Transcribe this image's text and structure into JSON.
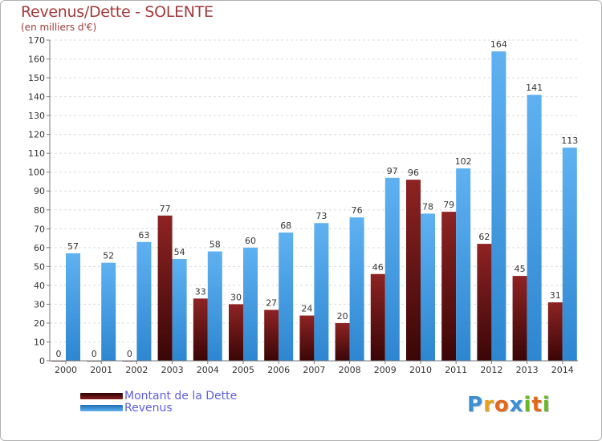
{
  "title": "Revenus/Dette - SOLENTE",
  "subtitle": "(en milliers d'€)",
  "colors": {
    "dette": "#7a1515",
    "revenus": "#3b96de",
    "title": "#a33a3a",
    "legend_text": "#5e5ee0"
  },
  "legend": {
    "dette_label": "Montant de la Dette",
    "revenus_label": "Revenus"
  },
  "logo": {
    "text": "Proxiti"
  },
  "chart_data": {
    "type": "bar",
    "title": "Revenus/Dette - SOLENTE",
    "ylabel": "(en milliers d'€)",
    "xlabel": "",
    "ylim": [
      0,
      170
    ],
    "yticks": [
      0,
      10,
      20,
      30,
      40,
      50,
      60,
      70,
      80,
      90,
      100,
      110,
      120,
      130,
      140,
      150,
      160,
      170
    ],
    "categories": [
      "2000",
      "2001",
      "2002",
      "2003",
      "2004",
      "2005",
      "2006",
      "2007",
      "2008",
      "2009",
      "2010",
      "2011",
      "2012",
      "2013",
      "2014"
    ],
    "series": [
      {
        "name": "Montant de la Dette",
        "values": [
          0,
          0,
          0,
          77,
          33,
          30,
          27,
          24,
          20,
          46,
          96,
          79,
          62,
          45,
          31
        ]
      },
      {
        "name": "Revenus",
        "values": [
          57,
          52,
          63,
          54,
          58,
          60,
          68,
          73,
          76,
          97,
          78,
          102,
          164,
          141,
          113
        ]
      }
    ]
  }
}
